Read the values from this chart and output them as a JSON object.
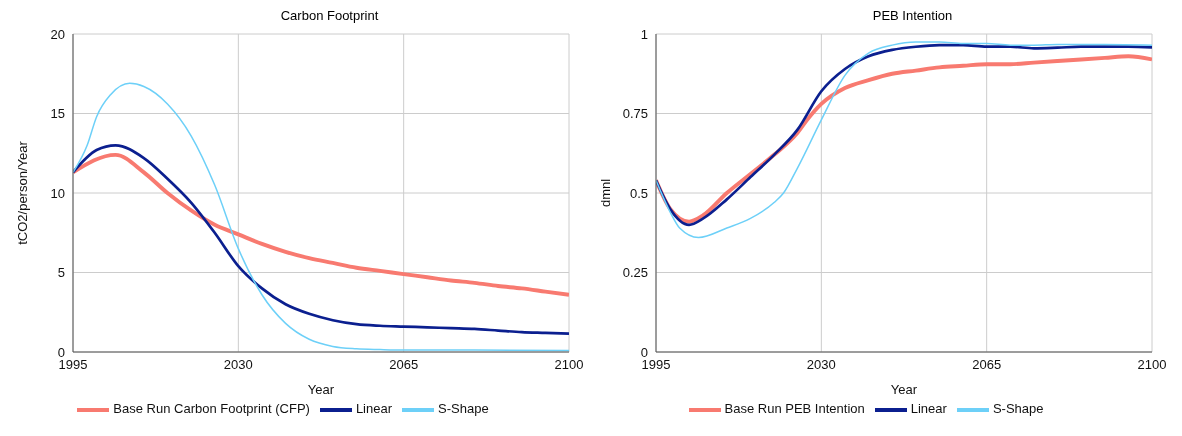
{
  "chart_data": [
    {
      "type": "line",
      "title": "Carbon Footprint",
      "xlabel": "Year",
      "ylabel": "tCO2/person/Year",
      "xlim": [
        1995,
        2100
      ],
      "xticks": [
        1995,
        2030,
        2065,
        2100
      ],
      "ylim": [
        0,
        20
      ],
      "yticks": [
        0,
        5,
        10,
        15,
        20
      ],
      "grid": true,
      "legend": "bottom",
      "marker": "none",
      "line_style": "solid",
      "series": [
        {
          "name": "Base Run Carbon Footprint (CFP)",
          "color": "#f87a70",
          "x": [
            1995,
            2004,
            2010,
            2015,
            2020,
            2025,
            2030,
            2035,
            2040,
            2045,
            2050,
            2055,
            2060,
            2065,
            2070,
            2075,
            2080,
            2085,
            2090,
            2095,
            2100
          ],
          "values": [
            11.3,
            12.4,
            11.3,
            10.0,
            8.9,
            8.0,
            7.4,
            6.8,
            6.3,
            5.9,
            5.6,
            5.3,
            5.1,
            4.9,
            4.7,
            4.5,
            4.35,
            4.15,
            4.0,
            3.8,
            3.6
          ]
        },
        {
          "name": "Linear",
          "color": "#0b1f8f",
          "x": [
            1995,
            2000,
            2004,
            2010,
            2015,
            2020,
            2025,
            2030,
            2035,
            2040,
            2045,
            2050,
            2055,
            2060,
            2065,
            2070,
            2075,
            2080,
            2085,
            2090,
            2095,
            2100
          ],
          "values": [
            11.3,
            12.7,
            13.0,
            12.2,
            10.9,
            9.4,
            7.5,
            5.4,
            4.0,
            3.0,
            2.4,
            2.0,
            1.75,
            1.65,
            1.6,
            1.55,
            1.5,
            1.45,
            1.35,
            1.25,
            1.2,
            1.15
          ]
        },
        {
          "name": "S-Shape",
          "color": "#6dd0f8",
          "x": [
            1995,
            1998,
            2000,
            2003,
            2007,
            2010,
            2015,
            2020,
            2025,
            2030,
            2035,
            2040,
            2045,
            2050,
            2055,
            2060,
            2065,
            2080,
            2100
          ],
          "values": [
            11.3,
            13.0,
            14.8,
            16.2,
            16.9,
            16.7,
            15.6,
            13.6,
            10.5,
            6.5,
            3.6,
            1.8,
            0.8,
            0.35,
            0.2,
            0.15,
            0.12,
            0.12,
            0.1
          ]
        }
      ]
    },
    {
      "type": "line",
      "title": "PEB Intention",
      "xlabel": "Year",
      "ylabel": "dmnl",
      "xlim": [
        1995,
        2100
      ],
      "xticks": [
        1995,
        2030,
        2065,
        2100
      ],
      "ylim": [
        0,
        1
      ],
      "yticks": [
        0,
        0.25,
        0.5,
        0.75,
        1
      ],
      "grid": true,
      "legend": "bottom",
      "marker": "none",
      "line_style": "solid",
      "series": [
        {
          "name": "Base Run PEB Intention",
          "color": "#f87a70",
          "x": [
            1995,
            1998,
            2002,
            2005,
            2010,
            2015,
            2020,
            2025,
            2027,
            2030,
            2035,
            2040,
            2045,
            2050,
            2055,
            2060,
            2065,
            2070,
            2075,
            2080,
            2085,
            2090,
            2095,
            2100
          ],
          "values": [
            0.54,
            0.45,
            0.41,
            0.43,
            0.5,
            0.56,
            0.62,
            0.69,
            0.73,
            0.78,
            0.83,
            0.855,
            0.875,
            0.885,
            0.895,
            0.9,
            0.905,
            0.905,
            0.91,
            0.915,
            0.92,
            0.925,
            0.93,
            0.92
          ]
        },
        {
          "name": "Linear",
          "color": "#0b1f8f",
          "x": [
            1995,
            1998,
            2002,
            2005,
            2010,
            2015,
            2020,
            2025,
            2030,
            2035,
            2040,
            2045,
            2050,
            2055,
            2060,
            2065,
            2070,
            2075,
            2080,
            2085,
            2090,
            2095,
            2100
          ],
          "values": [
            0.54,
            0.45,
            0.4,
            0.42,
            0.48,
            0.55,
            0.62,
            0.7,
            0.82,
            0.89,
            0.93,
            0.95,
            0.96,
            0.965,
            0.965,
            0.96,
            0.96,
            0.955,
            0.957,
            0.96,
            0.96,
            0.96,
            0.958
          ]
        },
        {
          "name": "S-Shape",
          "color": "#6dd0f8",
          "x": [
            1995,
            1998,
            2000,
            2004,
            2010,
            2015,
            2020,
            2022,
            2025,
            2030,
            2035,
            2040,
            2045,
            2050,
            2055,
            2060,
            2065,
            2070,
            2075,
            2080,
            2090,
            2100
          ],
          "values": [
            0.54,
            0.44,
            0.39,
            0.36,
            0.39,
            0.42,
            0.47,
            0.5,
            0.58,
            0.73,
            0.87,
            0.94,
            0.965,
            0.975,
            0.975,
            0.97,
            0.97,
            0.965,
            0.965,
            0.967,
            0.967,
            0.965
          ]
        }
      ]
    }
  ]
}
